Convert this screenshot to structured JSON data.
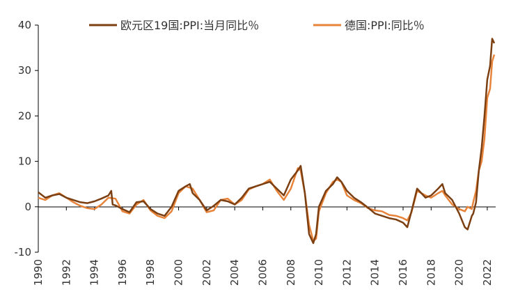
{
  "chart_data": {
    "type": "line",
    "title": "",
    "xlabel": "",
    "ylabel": "",
    "xlim": [
      1990,
      2022.6
    ],
    "ylim": [
      -10,
      40
    ],
    "y_ticks": [
      -10,
      0,
      10,
      20,
      30,
      40
    ],
    "x_ticks": [
      1990,
      1992,
      1994,
      1996,
      1998,
      2000,
      2002,
      2004,
      2006,
      2008,
      2010,
      2012,
      2014,
      2016,
      2018,
      2020,
      2022
    ],
    "y_tick_labels": [
      "-10",
      "0",
      "10",
      "20",
      "30",
      "40"
    ],
    "x_tick_labels": [
      "1990",
      "1992",
      "1994",
      "1996",
      "1998",
      "2000",
      "2002",
      "2004",
      "2006",
      "2008",
      "2010",
      "2012",
      "2014",
      "2016",
      "2018",
      "2020",
      "2022"
    ],
    "legend": "top",
    "grid": false,
    "series": [
      {
        "name": "欧元区19国:PPI:当月同比％",
        "color": "#7b3f12",
        "x": [
          1990.0,
          1990.5,
          1991.0,
          1991.5,
          1992.0,
          1992.5,
          1993.0,
          1993.5,
          1994.0,
          1994.5,
          1995.0,
          1995.2,
          1995.3,
          1995.5,
          1996.0,
          1996.5,
          1997.0,
          1997.5,
          1998.0,
          1998.5,
          1999.0,
          1999.5,
          2000.0,
          2000.5,
          2000.8,
          2001.0,
          2001.5,
          2002.0,
          2002.5,
          2003.0,
          2003.5,
          2004.0,
          2004.5,
          2005.0,
          2005.5,
          2006.0,
          2006.5,
          2007.0,
          2007.5,
          2008.0,
          2008.5,
          2008.7,
          2009.0,
          2009.3,
          2009.6,
          2009.8,
          2010.0,
          2010.5,
          2011.0,
          2011.3,
          2011.6,
          2012.0,
          2012.5,
          2013.0,
          2013.5,
          2014.0,
          2014.5,
          2015.0,
          2015.5,
          2016.0,
          2016.3,
          2016.6,
          2017.0,
          2017.3,
          2017.6,
          2018.0,
          2018.5,
          2018.8,
          2019.0,
          2019.5,
          2020.0,
          2020.4,
          2020.6,
          2020.9,
          2021.0,
          2021.2,
          2021.4,
          2021.6,
          2021.8,
          2022.0,
          2022.2,
          2022.35,
          2022.5
        ],
        "values": [
          3.2,
          2.0,
          2.5,
          2.8,
          2.0,
          1.5,
          1.0,
          0.8,
          1.2,
          1.8,
          2.5,
          3.5,
          0.5,
          0.3,
          -0.5,
          -1.2,
          1.0,
          1.2,
          -0.5,
          -1.5,
          -2.0,
          0.0,
          3.5,
          4.5,
          5.0,
          3.0,
          1.5,
          -0.8,
          0.2,
          1.5,
          1.2,
          0.5,
          2.0,
          4.0,
          4.5,
          5.0,
          5.5,
          4.0,
          2.5,
          6.0,
          8.0,
          9.0,
          3.0,
          -6.0,
          -8.0,
          -6.0,
          0.0,
          3.5,
          5.0,
          6.5,
          5.5,
          3.5,
          2.0,
          1.0,
          -0.2,
          -1.5,
          -2.0,
          -2.5,
          -2.8,
          -3.5,
          -4.5,
          -1.0,
          4.0,
          3.0,
          2.0,
          2.5,
          4.0,
          5.0,
          3.0,
          1.5,
          -1.5,
          -4.5,
          -5.0,
          -2.0,
          -1.5,
          1.0,
          8.0,
          13.0,
          20.0,
          28.0,
          31.0,
          37.0,
          36.0
        ]
      },
      {
        "name": "德国:PPI:同比％",
        "color": "#e8833a",
        "x": [
          1990.0,
          1990.5,
          1991.0,
          1991.5,
          1992.0,
          1992.5,
          1993.0,
          1993.5,
          1994.0,
          1994.5,
          1995.0,
          1995.5,
          1996.0,
          1996.5,
          1997.0,
          1997.5,
          1998.0,
          1998.5,
          1999.0,
          1999.5,
          2000.0,
          2000.5,
          2001.0,
          2001.5,
          2002.0,
          2002.5,
          2003.0,
          2003.5,
          2004.0,
          2004.5,
          2005.0,
          2005.5,
          2006.0,
          2006.5,
          2007.0,
          2007.5,
          2008.0,
          2008.5,
          2008.7,
          2009.0,
          2009.3,
          2009.6,
          2009.8,
          2010.0,
          2010.5,
          2011.0,
          2011.3,
          2011.6,
          2012.0,
          2012.5,
          2013.0,
          2013.5,
          2014.0,
          2014.5,
          2015.0,
          2015.5,
          2016.0,
          2016.3,
          2016.6,
          2017.0,
          2017.3,
          2017.6,
          2018.0,
          2018.5,
          2018.8,
          2019.0,
          2019.5,
          2020.0,
          2020.4,
          2020.6,
          2020.9,
          2021.0,
          2021.2,
          2021.4,
          2021.6,
          2021.8,
          2022.0,
          2022.2,
          2022.35,
          2022.5
        ],
        "values": [
          2.0,
          1.5,
          2.5,
          3.0,
          2.0,
          1.0,
          0.2,
          -0.3,
          -0.5,
          0.5,
          2.0,
          1.8,
          -1.0,
          -1.5,
          0.5,
          1.5,
          -0.8,
          -2.0,
          -2.5,
          -1.0,
          3.0,
          4.5,
          4.0,
          1.5,
          -1.2,
          -0.8,
          1.5,
          1.8,
          0.5,
          1.5,
          3.8,
          4.5,
          5.0,
          6.0,
          3.5,
          1.5,
          4.0,
          8.5,
          8.0,
          3.0,
          -4.0,
          -7.5,
          -7.0,
          -1.0,
          3.0,
          5.5,
          6.0,
          5.5,
          2.5,
          1.5,
          0.8,
          -0.3,
          -0.8,
          -1.0,
          -1.8,
          -2.0,
          -2.5,
          -3.0,
          -1.2,
          3.5,
          3.0,
          2.5,
          2.0,
          3.0,
          3.5,
          2.5,
          0.5,
          -0.5,
          -1.0,
          0.0,
          -0.5,
          1.0,
          3.5,
          8.0,
          10.0,
          15.0,
          24.0,
          26.0,
          32.0,
          33.5
        ]
      }
    ]
  }
}
